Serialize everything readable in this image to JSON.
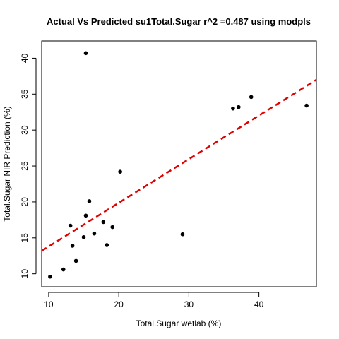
{
  "chart_data": {
    "type": "scatter",
    "title": "Actual Vs Predicted su1Total.Sugar r^2 =0.487 using modpls",
    "xlabel": "Total.Sugar wetlab (%)",
    "ylabel": "Total.Sugar NIR Prediction (%)",
    "xlim": [
      9.0,
      48.2
    ],
    "ylim": [
      8.2,
      42.4
    ],
    "x_ticks": [
      10,
      20,
      30,
      40
    ],
    "y_ticks": [
      10,
      15,
      20,
      25,
      30,
      35,
      40
    ],
    "grid": false,
    "points": [
      {
        "x": 10.2,
        "y": 9.6
      },
      {
        "x": 12.1,
        "y": 10.6
      },
      {
        "x": 13.1,
        "y": 16.7
      },
      {
        "x": 13.4,
        "y": 13.9
      },
      {
        "x": 13.9,
        "y": 11.8
      },
      {
        "x": 15.0,
        "y": 15.1
      },
      {
        "x": 15.3,
        "y": 18.1
      },
      {
        "x": 15.3,
        "y": 40.7
      },
      {
        "x": 15.8,
        "y": 20.1
      },
      {
        "x": 16.5,
        "y": 15.6
      },
      {
        "x": 17.8,
        "y": 17.2
      },
      {
        "x": 18.3,
        "y": 14.0
      },
      {
        "x": 19.1,
        "y": 16.5
      },
      {
        "x": 20.2,
        "y": 24.2
      },
      {
        "x": 29.1,
        "y": 15.5
      },
      {
        "x": 36.3,
        "y": 33.0
      },
      {
        "x": 37.1,
        "y": 33.2
      },
      {
        "x": 38.9,
        "y": 34.6
      },
      {
        "x": 46.8,
        "y": 33.4
      }
    ],
    "fit_line": {
      "x": [
        9.0,
        48.2
      ],
      "y": [
        13.2,
        37.0
      ]
    },
    "colors": {
      "points": "#000000",
      "fit_line": "#e00000",
      "axes": "#000000"
    }
  }
}
